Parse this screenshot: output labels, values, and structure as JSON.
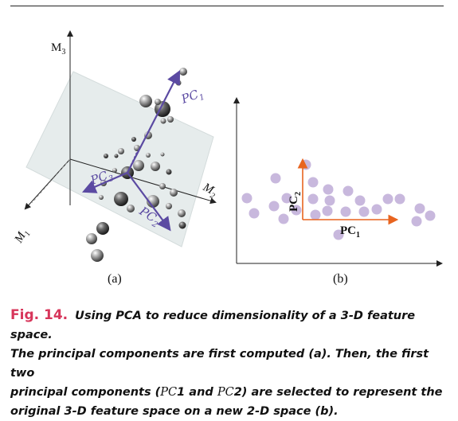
{
  "figure": {
    "panel_a_label": "(a)",
    "panel_b_label": "(b)",
    "axes_3d": {
      "m1": "M",
      "m1_sub": "1",
      "m2": "M",
      "m2_sub": "2",
      "m3": "M",
      "m3_sub": "3"
    },
    "pc_labels_a": {
      "pc1": "PC",
      "pc1_sub": "1",
      "pc2": "PC",
      "pc2_sub": "2",
      "pc3": "PC",
      "pc3_sub": "3"
    },
    "pc_labels_b": {
      "pc1": "PC",
      "pc1_sub": "1",
      "pc2": "PC",
      "pc2_sub": "2"
    },
    "colors": {
      "pca_arrow": "#5b4aa2",
      "pc_axis_b": "#e8641f",
      "scatter_b": "#c8b8dd",
      "plane": "#e6ecec",
      "caption_label": "#d7355a"
    }
  },
  "caption": {
    "label": "Fig. 14.",
    "line1": "Using PCA to reduce dimensionality of a 3-D feature space.",
    "line2": "The principal components are first computed (a). Then, the first two",
    "line3_pre": "principal components (",
    "pc1_sym": "PC",
    "pc1_num": "1",
    "mid_and": " and ",
    "pc2_sym": "PC",
    "pc2_num": "2",
    "line3_post": ") are selected to represent the",
    "line4": "original 3-D feature space on a new 2-D space (b)."
  }
}
